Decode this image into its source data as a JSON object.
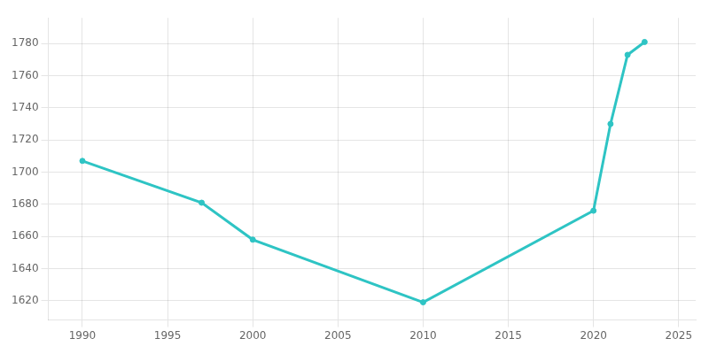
{
  "chart_data": {
    "type": "line",
    "x": [
      1990,
      1997,
      2000,
      2010,
      2020,
      2021,
      2022,
      2023
    ],
    "values": [
      1707,
      1681,
      1658,
      1619,
      1676,
      1730,
      1773,
      1781
    ],
    "color": "#2EC4C4",
    "marker": "circle",
    "xlim": [
      1988,
      2026
    ],
    "ylim": [
      1608,
      1796
    ],
    "xticks": [
      1990,
      1995,
      2000,
      2005,
      2010,
      2015,
      2020,
      2025
    ],
    "yticks": [
      1620,
      1640,
      1660,
      1680,
      1700,
      1720,
      1740,
      1760,
      1780
    ],
    "grid": true
  }
}
